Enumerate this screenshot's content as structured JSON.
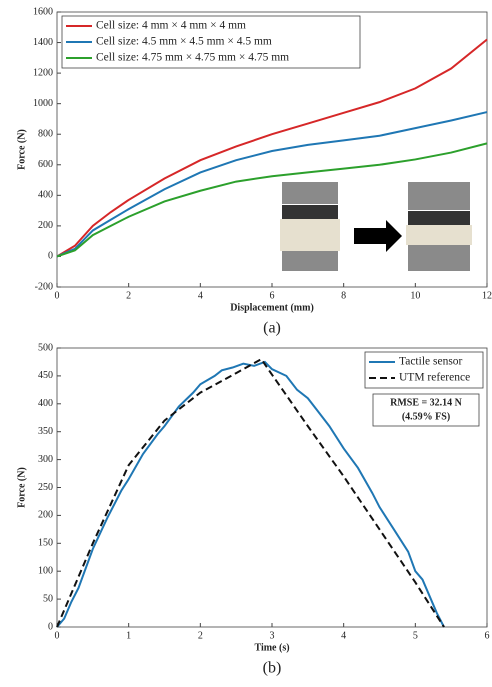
{
  "chart_data": [
    {
      "type": "line",
      "label": "(a)",
      "x_label": "Displacement (mm)",
      "y_label": "Force (N)",
      "xlim": [
        0,
        12
      ],
      "xticks": [
        0,
        2,
        4,
        6,
        8,
        10,
        12
      ],
      "ylim": [
        -200,
        1600
      ],
      "yticks": [
        -200,
        0,
        200,
        400,
        600,
        800,
        1000,
        1200,
        1400,
        1600
      ],
      "legend": "upper left",
      "x": [
        0,
        0.5,
        1,
        1.5,
        2,
        3,
        4,
        5,
        6,
        7,
        8,
        9,
        10,
        11,
        12
      ],
      "series": [
        {
          "name": "Cell size: 4 mm × 4 mm × 4 mm",
          "color": "#d62728",
          "values": [
            0,
            70,
            200,
            290,
            370,
            510,
            630,
            720,
            800,
            870,
            940,
            1010,
            1100,
            1230,
            1420
          ]
        },
        {
          "name": "Cell size: 4.5 mm × 4.5 mm × 4.5 mm",
          "color": "#1f77b4",
          "values": [
            0,
            50,
            170,
            240,
            310,
            440,
            550,
            630,
            690,
            730,
            760,
            790,
            840,
            890,
            945
          ]
        },
        {
          "name": "Cell size: 4.75 mm × 4.75 mm × 4.75 mm",
          "color": "#2ca02c",
          "values": [
            0,
            40,
            140,
            200,
            260,
            360,
            430,
            490,
            525,
            550,
            575,
            600,
            635,
            680,
            740
          ]
        }
      ]
    },
    {
      "type": "line",
      "label": "(b)",
      "x_label": "Time (s)",
      "y_label": "Force (N)",
      "xlim": [
        0,
        6
      ],
      "xticks": [
        0,
        1,
        2,
        3,
        4,
        5,
        6
      ],
      "ylim": [
        0,
        500
      ],
      "yticks": [
        0,
        50,
        100,
        150,
        200,
        250,
        300,
        350,
        400,
        450,
        500
      ],
      "legend": "upper right",
      "annotation": [
        "RMSE = 32.14 N",
        "(4.59% FS)"
      ],
      "series": [
        {
          "name": "Tactile sensor",
          "color": "#1f77b4",
          "dash": false,
          "x": [
            0,
            0.1,
            0.2,
            0.3,
            0.5,
            0.7,
            0.9,
            1,
            1.2,
            1.4,
            1.5,
            1.7,
            1.9,
            2,
            2.2,
            2.3,
            2.45,
            2.6,
            2.75,
            2.9,
            3,
            3.2,
            3.35,
            3.5,
            3.65,
            3.8,
            4,
            4.2,
            4.4,
            4.5,
            4.7,
            4.9,
            5,
            5.1,
            5.2,
            5.3,
            5.4
          ],
          "values": [
            0,
            15,
            45,
            70,
            140,
            195,
            245,
            265,
            310,
            345,
            360,
            395,
            420,
            435,
            450,
            460,
            465,
            472,
            468,
            475,
            462,
            450,
            425,
            410,
            385,
            360,
            320,
            285,
            240,
            215,
            175,
            135,
            100,
            85,
            55,
            25,
            0
          ]
        },
        {
          "name": "UTM reference",
          "color": "#111111",
          "dash": true,
          "x": [
            0,
            0.5,
            1,
            1.5,
            2,
            2.5,
            2.85,
            3.5,
            4,
            4.5,
            5,
            5.4
          ],
          "values": [
            0,
            150,
            290,
            370,
            420,
            455,
            480,
            360,
            270,
            175,
            80,
            0
          ]
        }
      ]
    }
  ]
}
